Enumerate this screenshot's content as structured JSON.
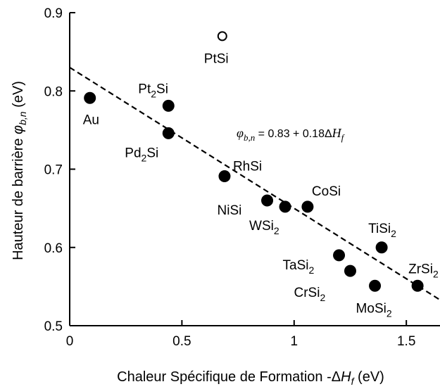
{
  "chart_data": {
    "type": "scatter",
    "title": "",
    "xlabel": "Chaleur Spécifique de Formation -ΔHf (eV)",
    "ylabel": "Hauteur de barrière φb,n (eV)",
    "xlabel_parts": {
      "pre": "Chaleur Spécifique de Formation -Δ",
      "var": "H",
      "sub": "f",
      "post": " (eV)"
    },
    "ylabel_parts": {
      "pre": "Hauteur de barrière ",
      "var": "φ",
      "sub": "b,n",
      "post": " (eV)"
    },
    "xlim": [
      0,
      1.65
    ],
    "ylim": [
      0.5,
      0.9
    ],
    "xticks": [
      "0",
      "0.5",
      "1",
      "1.5"
    ],
    "xtick_values": [
      0,
      0.5,
      1,
      1.5
    ],
    "yticks": [
      "0.5",
      "0.6",
      "0.7",
      "0.8",
      "0.9"
    ],
    "ytick_values": [
      0.5,
      0.6,
      0.7,
      0.8,
      0.9
    ],
    "grid": false,
    "points": [
      {
        "label": "Au",
        "base": "Au",
        "sub": "",
        "x": 0.09,
        "y": 0.791,
        "filled": true
      },
      {
        "label": "Pt2Si",
        "base": "Pt",
        "sub": "2",
        "tail": "Si",
        "x": 0.44,
        "y": 0.781,
        "filled": true
      },
      {
        "label": "Pd2Si",
        "base": "Pd",
        "sub": "2",
        "tail": "Si",
        "x": 0.44,
        "y": 0.746,
        "filled": true
      },
      {
        "label": "PtSi",
        "base": "PtSi",
        "sub": "",
        "x": 0.68,
        "y": 0.87,
        "filled": false
      },
      {
        "label": "RhSi",
        "base": "RhSi",
        "sub": "",
        "x": 0.69,
        "y": 0.691,
        "filled": true
      },
      {
        "label": "NiSi",
        "base": "NiSi",
        "sub": "",
        "x": 0.88,
        "y": 0.66,
        "filled": true
      },
      {
        "label": "WSi2",
        "base": "WSi",
        "sub": "2",
        "x": 0.96,
        "y": 0.652,
        "filled": true
      },
      {
        "label": "CoSi",
        "base": "CoSi",
        "sub": "",
        "x": 1.06,
        "y": 0.652,
        "filled": true
      },
      {
        "label": "TaSi2",
        "base": "TaSi",
        "sub": "2",
        "x": 1.2,
        "y": 0.59,
        "filled": true
      },
      {
        "label": "CrSi2",
        "base": "CrSi",
        "sub": "2",
        "x": 1.25,
        "y": 0.57,
        "filled": true
      },
      {
        "label": "TiSi2",
        "base": "TiSi",
        "sub": "2",
        "x": 1.39,
        "y": 0.6,
        "filled": true
      },
      {
        "label": "MoSi2",
        "base": "MoSi",
        "sub": "2",
        "x": 1.36,
        "y": 0.551,
        "filled": true
      },
      {
        "label": "ZrSi2",
        "base": "ZrSi",
        "sub": "2",
        "x": 1.55,
        "y": 0.551,
        "filled": true
      }
    ],
    "fit_line": {
      "intercept": 0.83,
      "slope": -0.18,
      "style": "dashed"
    },
    "annotation": {
      "text": "φb,n = 0.83 + 0.18ΔHf",
      "phi": "φ",
      "phi_sub": "b,n",
      "mid": " = 0.83 + 0.18Δ",
      "h": "H",
      "h_sub": "f"
    }
  }
}
